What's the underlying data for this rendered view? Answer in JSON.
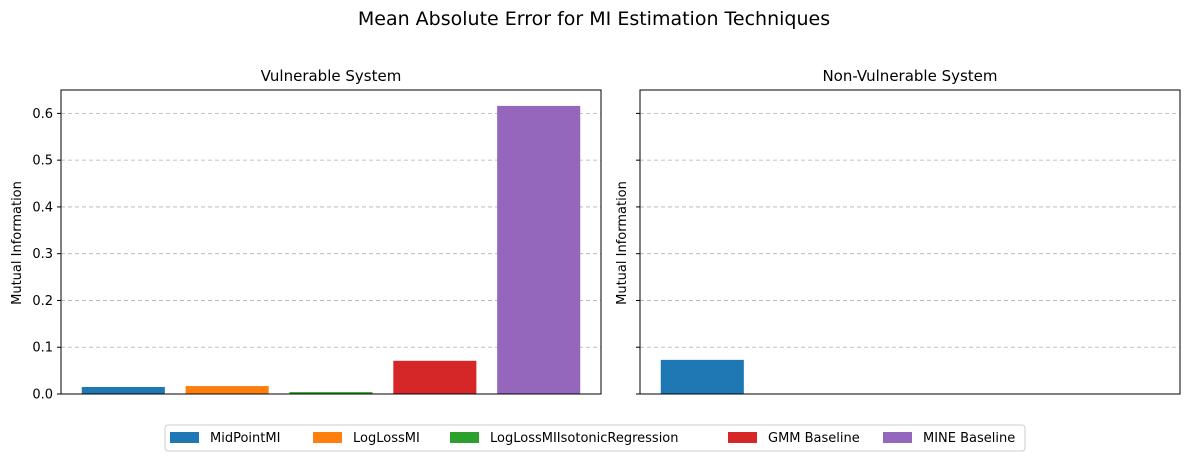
{
  "figure": {
    "title": "Mean Absolute Error for MI Estimation Techniques"
  },
  "chart_data": [
    {
      "type": "bar",
      "title": "Vulnerable System",
      "xlabel": "",
      "ylabel": "Mutual Information",
      "ylim": [
        0,
        0.65
      ],
      "yticks": [
        "0.0",
        "0.1",
        "0.2",
        "0.3",
        "0.4",
        "0.5",
        "0.6"
      ],
      "grid": "y-dashed",
      "categories": [
        "MidPointMI",
        "LogLossMI",
        "LogLossMIIsotonicRegression",
        "GMM Baseline",
        "MINE Baseline"
      ],
      "values": [
        0.015,
        0.017,
        0.004,
        0.071,
        0.616
      ]
    },
    {
      "type": "bar",
      "title": "Non-Vulnerable System",
      "xlabel": "",
      "ylabel": "Mutual Information",
      "ylim": [
        0,
        0.65
      ],
      "grid": "y-dashed",
      "categories": [
        "MidPointMI",
        "LogLossMI",
        "LogLossMIIsotonicRegression",
        "GMM Baseline",
        "MINE Baseline"
      ],
      "values": [
        0.073,
        0,
        0,
        0,
        0
      ]
    }
  ],
  "legend": {
    "placement": "bottom-center",
    "items": [
      {
        "label": "MidPointMI",
        "color": "#1f77b4"
      },
      {
        "label": "LogLossMI",
        "color": "#ff7f0e"
      },
      {
        "label": "LogLossMIIsotonicRegression",
        "color": "#2ca02c"
      },
      {
        "label": "GMM Baseline",
        "color": "#d62728"
      },
      {
        "label": "MINE Baseline",
        "color": "#9467bd"
      }
    ]
  }
}
